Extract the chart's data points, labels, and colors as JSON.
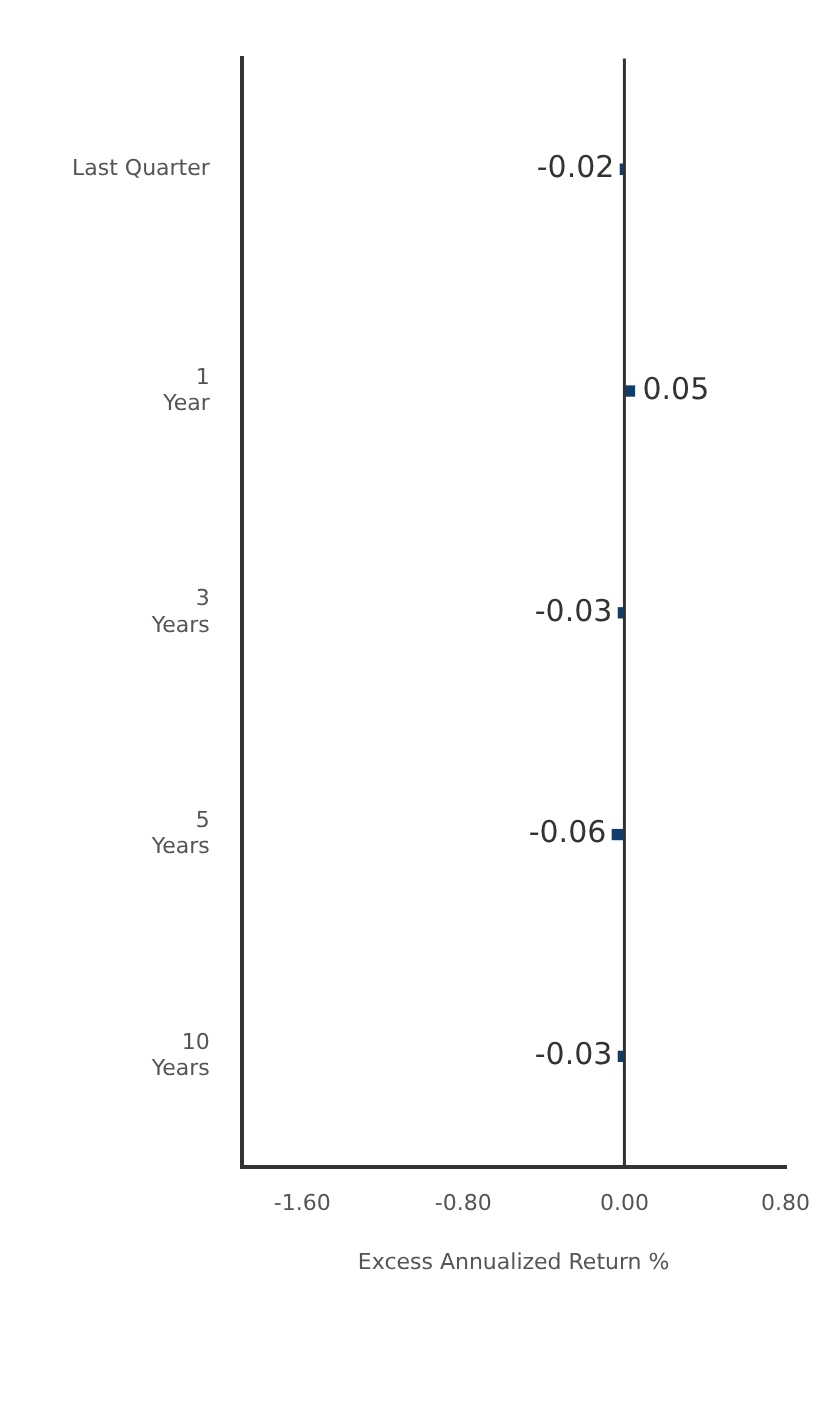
{
  "chart_data": {
    "type": "bar",
    "orientation": "horizontal",
    "categories": [
      "Last Quarter",
      "1\nYear",
      "3\nYears",
      "5\nYears",
      "10\nYears"
    ],
    "series": [
      {
        "color": "#0f3d6e",
        "values": [
          -0.02,
          0.05,
          -0.03,
          -0.06,
          -0.03
        ]
      }
    ],
    "xlabel": "Excess Annualized Return %",
    "xlim": [
      -1.9,
      0.8
    ],
    "xticks": [
      {
        "value": -1.6,
        "label": "-1.60"
      },
      {
        "value": -0.8,
        "label": "-0.80"
      },
      {
        "value": 0,
        "label": "0.00"
      },
      {
        "value": 0.8,
        "label": "0.80"
      }
    ],
    "ref_lines": [
      {
        "axis": "x",
        "value": 0,
        "color": "#333333"
      }
    ],
    "data_labels": true,
    "grid": false,
    "legend": false
  }
}
